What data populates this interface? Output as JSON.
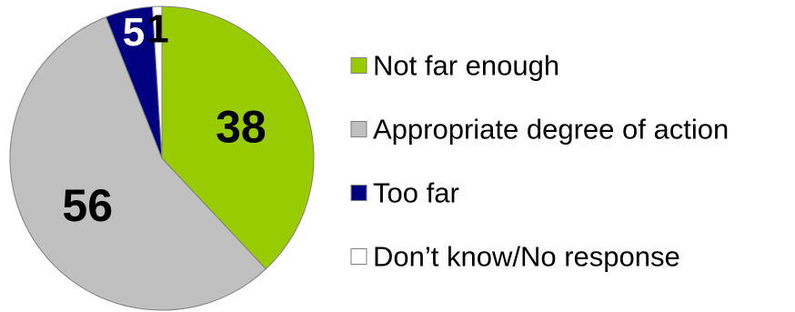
{
  "chart_data": {
    "type": "pie",
    "title": "",
    "slices": [
      {
        "label": "Not far enough",
        "value": 38,
        "color": "#99cc00",
        "label_color": "#000000"
      },
      {
        "label": "Appropriate degree of action",
        "value": 56,
        "color": "#c0c0c0",
        "label_color": "#000000"
      },
      {
        "label": "Too far",
        "value": 5,
        "color": "#000080",
        "label_color": "#ffffff"
      },
      {
        "label": "Don’t know/No response",
        "value": 1,
        "color": "#ffffff",
        "label_color": "#000000"
      }
    ],
    "start_angle": "12 o'clock",
    "direction": "clockwise",
    "legend": {
      "position": "right"
    }
  }
}
